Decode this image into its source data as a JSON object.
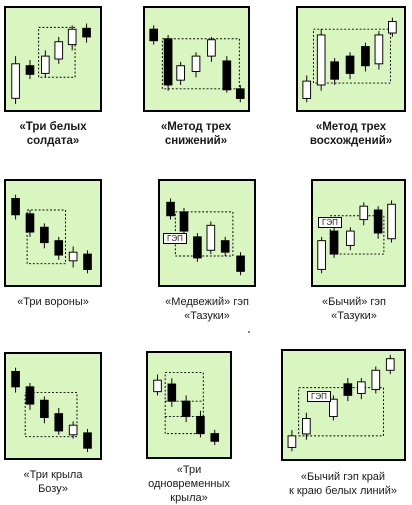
{
  "colors": {
    "panel": "#d9f5c0",
    "bull": "#ffffff",
    "bear": "#000000",
    "guide": "#000000"
  },
  "patterns": [
    {
      "id": "three-white-soldiers",
      "caption": [
        "«Три белых",
        "солдата»"
      ],
      "bold": true
    },
    {
      "id": "falling-three-methods",
      "caption": [
        "«Метод трех",
        "снижений»"
      ],
      "bold": true
    },
    {
      "id": "rising-three-methods",
      "caption": [
        "«Метод трех",
        "восхождений»"
      ],
      "bold": true
    },
    {
      "id": "three-black-crows",
      "caption": [
        "«Три вороны»"
      ],
      "bold": false
    },
    {
      "id": "bearish-tasuki-gap",
      "caption": [
        "«Медвежий» гэп",
        "«Тазуки»"
      ],
      "bold": false,
      "gap_label": "ГЭП"
    },
    {
      "id": "bullish-tasuki-gap",
      "caption": [
        "«Бычий» гэп",
        "«Тазуки»"
      ],
      "bold": false,
      "gap_label": "ГЭП"
    },
    {
      "id": "three-winged-bozu",
      "caption": [
        "«Три крыла",
        "Бозу»"
      ],
      "bold": false
    },
    {
      "id": "identical-three-crows",
      "caption": [
        "«Три",
        "одновременных",
        "крыла»"
      ],
      "bold": false
    },
    {
      "id": "bullish-side-by-side-white-lines",
      "caption": [
        "«Бычий гэп край",
        "к краю белых линий»"
      ],
      "bold": false,
      "gap_label": "ГЭП"
    }
  ]
}
